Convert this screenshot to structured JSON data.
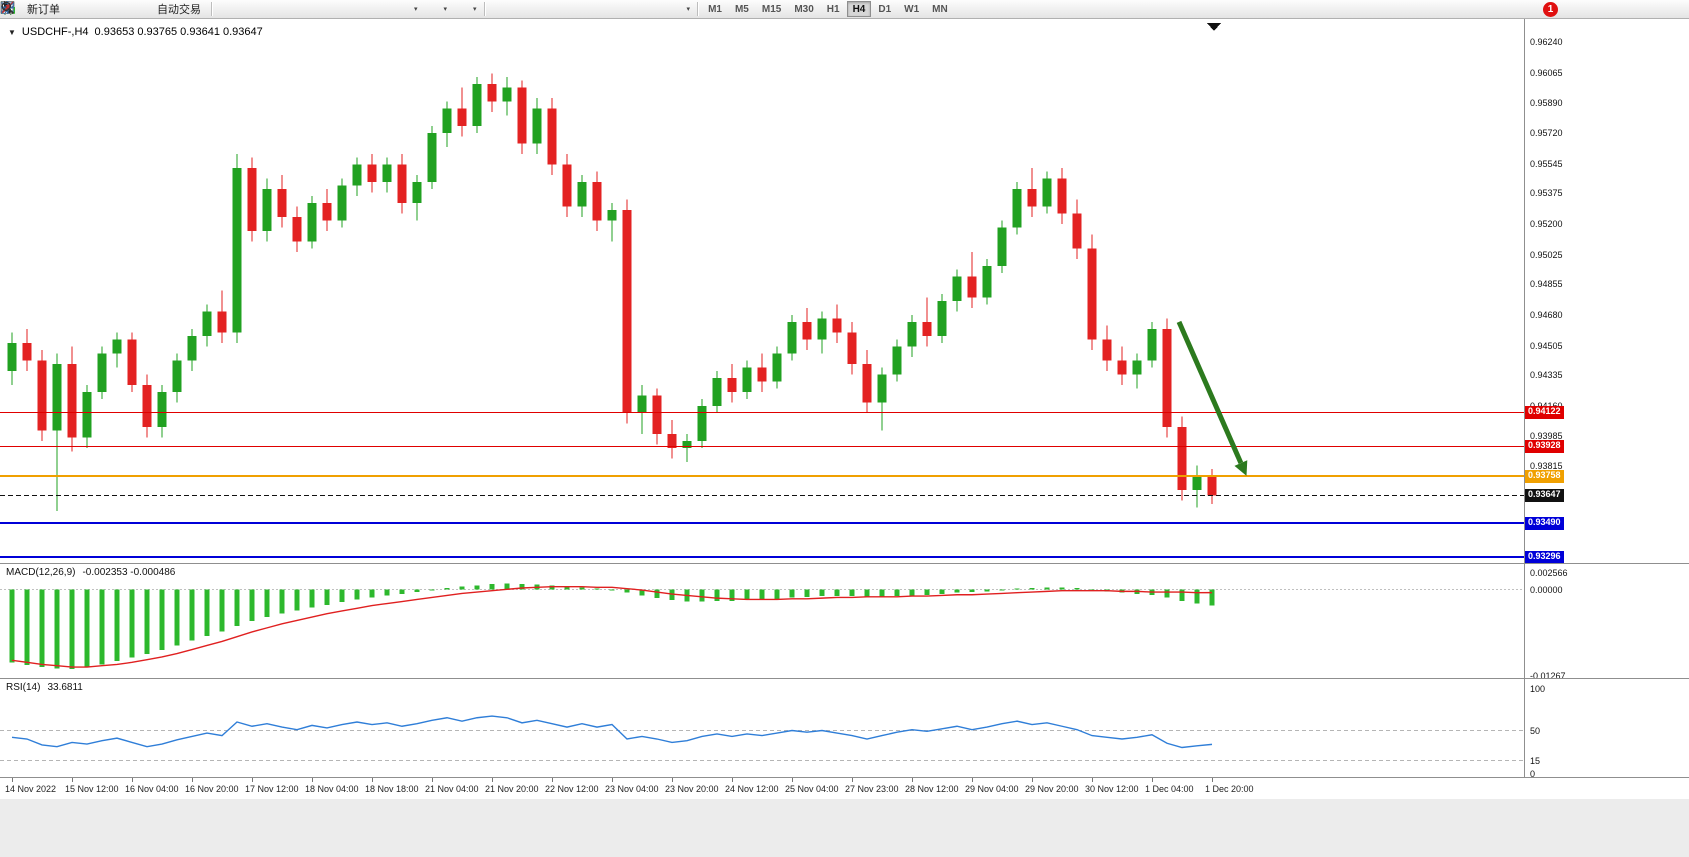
{
  "window": {
    "symbol_period": "USDCHF-,H4",
    "ohlc": "0.93653 0.93765 0.93641 0.93647"
  },
  "toolbar": {
    "left_buttons": [
      {
        "name": "new-order",
        "label": "新订单",
        "icon": "new-order-icon"
      },
      {
        "name": "alerts",
        "icon": "bell-icon"
      },
      {
        "name": "data-window",
        "icon": "window-icon"
      },
      {
        "name": "refresh",
        "icon": "refresh-icon"
      },
      {
        "name": "auto-trading",
        "label": "自动交易",
        "icon": "auto-trading-icon"
      }
    ],
    "chart_buttons": [
      {
        "name": "bar-chart",
        "icon": "bar-chart-icon"
      },
      {
        "name": "candlestick-chart",
        "icon": "candle-chart-icon"
      },
      {
        "name": "line-chart",
        "icon": "line-chart-icon"
      },
      {
        "name": "zoom-in",
        "icon": "zoom-in-icon"
      },
      {
        "name": "zoom-out",
        "icon": "zoom-out-icon"
      },
      {
        "name": "tile-windows",
        "icon": "tile-windows-icon"
      },
      {
        "name": "auto-scroll",
        "icon": "auto-scroll-icon"
      },
      {
        "name": "chart-shift",
        "icon": "chart-shift-icon"
      },
      {
        "name": "indicators",
        "icon": "indicators-icon",
        "caret": true
      },
      {
        "name": "periods",
        "icon": "clock-icon",
        "caret": true
      },
      {
        "name": "templates",
        "icon": "template-icon",
        "caret": true
      }
    ],
    "draw_buttons": [
      {
        "name": "cursor",
        "icon": "cursor-icon"
      },
      {
        "name": "crosshair",
        "icon": "crosshair-icon"
      },
      {
        "name": "vertical-line",
        "icon": "vertical-line-icon"
      },
      {
        "name": "horizontal-line",
        "icon": "horizontal-line-icon"
      },
      {
        "name": "trendline",
        "icon": "trendline-icon"
      },
      {
        "name": "channel",
        "icon": "channel-icon"
      },
      {
        "name": "fibonacci",
        "icon": "fibonacci-icon"
      },
      {
        "name": "text",
        "icon": "text-icon"
      },
      {
        "name": "arrows",
        "icon": "arrow-icon",
        "caret": true
      }
    ],
    "timeframes": [
      "M1",
      "M5",
      "M15",
      "M30",
      "H1",
      "H4",
      "D1",
      "W1",
      "MN"
    ],
    "active_timeframe": "H4",
    "notification_badge": "1"
  },
  "colors": {
    "bull": "#21a121",
    "bear": "#e32222",
    "macd_histogram": "#2db82d",
    "macd_signal": "#e02020",
    "rsi_line": "#2f7ed8",
    "arrow": "#2c7a1e",
    "level_red": "#e00000",
    "level_orange": "#f0a000",
    "level_blue": "#0000d8",
    "current_price_black": "#111111"
  },
  "chart_data": {
    "type": "candlestick",
    "symbol": "USDCHF",
    "timeframe": "H4",
    "current_price": "0.93647",
    "price_axis_labels": [
      "0.96240",
      "0.96065",
      "0.95890",
      "0.95720",
      "0.95545",
      "0.95375",
      "0.95200",
      "0.95025",
      "0.94855",
      "0.94680",
      "0.94505",
      "0.94335",
      "0.94160",
      "0.93985",
      "0.93815"
    ],
    "time_axis_labels": [
      "14 Nov 2022",
      "15 Nov 12:00",
      "16 Nov 04:00",
      "16 Nov 20:00",
      "17 Nov 12:00",
      "18 Nov 04:00",
      "18 Nov 18:00",
      "21 Nov 04:00",
      "21 Nov 20:00",
      "22 Nov 12:00",
      "23 Nov 04:00",
      "23 Nov 20:00",
      "24 Nov 12:00",
      "25 Nov 04:00",
      "27 Nov 23:00",
      "28 Nov 12:00",
      "29 Nov 04:00",
      "29 Nov 20:00",
      "30 Nov 12:00",
      "1 Dec 04:00",
      "1 Dec 20:00"
    ],
    "levels": [
      {
        "label": "0.94122",
        "price": 0.94122,
        "color": "#e00000",
        "width": 1,
        "dashed": false
      },
      {
        "label": "0.93928",
        "price": 0.93928,
        "color": "#e00000",
        "width": 1,
        "dashed": false
      },
      {
        "label": "0.93758",
        "price": 0.93758,
        "color": "#f0a000",
        "width": 2,
        "dashed": false
      },
      {
        "label": "0.93647",
        "price": 0.93647,
        "color": "#111111",
        "width": 1,
        "dashed": true
      },
      {
        "label": "0.93490",
        "price": 0.9349,
        "color": "#0000d8",
        "width": 2,
        "dashed": false
      },
      {
        "label": "0.93296",
        "price": 0.93296,
        "color": "#0000d8",
        "width": 2,
        "dashed": false
      }
    ],
    "annotations": [
      {
        "type": "arrow",
        "from": {
          "index": 77.8,
          "price": 0.9464
        },
        "to": {
          "index": 82.3,
          "price": 0.9376
        },
        "color": "#2c7a1e"
      }
    ],
    "candles": [
      [
        0.9436,
        0.9458,
        0.9428,
        0.9452
      ],
      [
        0.9452,
        0.946,
        0.9436,
        0.9442
      ],
      [
        0.9442,
        0.9448,
        0.9396,
        0.9402
      ],
      [
        0.9402,
        0.9446,
        0.9356,
        0.944
      ],
      [
        0.944,
        0.945,
        0.939,
        0.9398
      ],
      [
        0.9398,
        0.9428,
        0.9392,
        0.9424
      ],
      [
        0.9424,
        0.945,
        0.942,
        0.9446
      ],
      [
        0.9446,
        0.9458,
        0.9438,
        0.9454
      ],
      [
        0.9454,
        0.9458,
        0.9424,
        0.9428
      ],
      [
        0.9428,
        0.9434,
        0.9398,
        0.9404
      ],
      [
        0.9404,
        0.9428,
        0.9398,
        0.9424
      ],
      [
        0.9424,
        0.9446,
        0.9418,
        0.9442
      ],
      [
        0.9442,
        0.946,
        0.9436,
        0.9456
      ],
      [
        0.9456,
        0.9474,
        0.945,
        0.947
      ],
      [
        0.947,
        0.9482,
        0.9452,
        0.9458
      ],
      [
        0.9458,
        0.956,
        0.9452,
        0.9552
      ],
      [
        0.9552,
        0.9558,
        0.951,
        0.9516
      ],
      [
        0.9516,
        0.9546,
        0.951,
        0.954
      ],
      [
        0.954,
        0.9548,
        0.9518,
        0.9524
      ],
      [
        0.9524,
        0.953,
        0.9504,
        0.951
      ],
      [
        0.951,
        0.9536,
        0.9506,
        0.9532
      ],
      [
        0.9532,
        0.954,
        0.9516,
        0.9522
      ],
      [
        0.9522,
        0.9546,
        0.9518,
        0.9542
      ],
      [
        0.9542,
        0.9558,
        0.9536,
        0.9554
      ],
      [
        0.9554,
        0.956,
        0.9538,
        0.9544
      ],
      [
        0.9544,
        0.9558,
        0.9538,
        0.9554
      ],
      [
        0.9554,
        0.956,
        0.9526,
        0.9532
      ],
      [
        0.9532,
        0.9548,
        0.9522,
        0.9544
      ],
      [
        0.9544,
        0.9576,
        0.954,
        0.9572
      ],
      [
        0.9572,
        0.959,
        0.9564,
        0.9586
      ],
      [
        0.9586,
        0.9598,
        0.957,
        0.9576
      ],
      [
        0.9576,
        0.9604,
        0.9572,
        0.96
      ],
      [
        0.96,
        0.9606,
        0.9584,
        0.959
      ],
      [
        0.959,
        0.9604,
        0.9582,
        0.9598
      ],
      [
        0.9598,
        0.9602,
        0.956,
        0.9566
      ],
      [
        0.9566,
        0.9592,
        0.956,
        0.9586
      ],
      [
        0.9586,
        0.9592,
        0.9548,
        0.9554
      ],
      [
        0.9554,
        0.956,
        0.9524,
        0.953
      ],
      [
        0.953,
        0.9548,
        0.9524,
        0.9544
      ],
      [
        0.9544,
        0.955,
        0.9516,
        0.9522
      ],
      [
        0.9522,
        0.9532,
        0.951,
        0.9528
      ],
      [
        0.9528,
        0.9534,
        0.9406,
        0.9412
      ],
      [
        0.9412,
        0.9428,
        0.94,
        0.9422
      ],
      [
        0.9422,
        0.9426,
        0.9394,
        0.94
      ],
      [
        0.94,
        0.9408,
        0.9386,
        0.9392
      ],
      [
        0.9392,
        0.94,
        0.9384,
        0.9396
      ],
      [
        0.9396,
        0.942,
        0.9392,
        0.9416
      ],
      [
        0.9416,
        0.9436,
        0.9412,
        0.9432
      ],
      [
        0.9432,
        0.944,
        0.9418,
        0.9424
      ],
      [
        0.9424,
        0.9442,
        0.942,
        0.9438
      ],
      [
        0.9438,
        0.9446,
        0.9424,
        0.943
      ],
      [
        0.943,
        0.945,
        0.9426,
        0.9446
      ],
      [
        0.9446,
        0.9468,
        0.9442,
        0.9464
      ],
      [
        0.9464,
        0.9472,
        0.9448,
        0.9454
      ],
      [
        0.9454,
        0.947,
        0.9446,
        0.9466
      ],
      [
        0.9466,
        0.9474,
        0.9452,
        0.9458
      ],
      [
        0.9458,
        0.9464,
        0.9434,
        0.944
      ],
      [
        0.944,
        0.9448,
        0.9412,
        0.9418
      ],
      [
        0.9418,
        0.9438,
        0.9402,
        0.9434
      ],
      [
        0.9434,
        0.9454,
        0.943,
        0.945
      ],
      [
        0.945,
        0.9468,
        0.9444,
        0.9464
      ],
      [
        0.9464,
        0.9478,
        0.945,
        0.9456
      ],
      [
        0.9456,
        0.948,
        0.9452,
        0.9476
      ],
      [
        0.9476,
        0.9494,
        0.947,
        0.949
      ],
      [
        0.949,
        0.9504,
        0.9472,
        0.9478
      ],
      [
        0.9478,
        0.95,
        0.9474,
        0.9496
      ],
      [
        0.9496,
        0.9522,
        0.9492,
        0.9518
      ],
      [
        0.9518,
        0.9544,
        0.9514,
        0.954
      ],
      [
        0.954,
        0.9552,
        0.9524,
        0.953
      ],
      [
        0.953,
        0.955,
        0.9526,
        0.9546
      ],
      [
        0.9546,
        0.9552,
        0.952,
        0.9526
      ],
      [
        0.9526,
        0.9534,
        0.95,
        0.9506
      ],
      [
        0.9506,
        0.9514,
        0.9448,
        0.9454
      ],
      [
        0.9454,
        0.9462,
        0.9436,
        0.9442
      ],
      [
        0.9442,
        0.945,
        0.9428,
        0.9434
      ],
      [
        0.9434,
        0.9446,
        0.9426,
        0.9442
      ],
      [
        0.9442,
        0.9464,
        0.9438,
        0.946
      ],
      [
        0.946,
        0.9466,
        0.9398,
        0.9404
      ],
      [
        0.9404,
        0.941,
        0.9362,
        0.9368
      ],
      [
        0.9368,
        0.9382,
        0.9358,
        0.9376
      ],
      [
        0.9376,
        0.938,
        0.936,
        0.93647
      ]
    ],
    "indicators": {
      "macd": {
        "label": "MACD(12,26,9)",
        "values": "-0.002353 -0.000486",
        "axis_labels": [
          "0.002566",
          "0.00000",
          "-0.01267"
        ],
        "range": [
          -0.01267,
          0.002566
        ],
        "histogram": [
          -0.0108,
          -0.0112,
          -0.0115,
          -0.0117,
          -0.0118,
          -0.0115,
          -0.0111,
          -0.0106,
          -0.0101,
          -0.0096,
          -0.009,
          -0.0083,
          -0.0076,
          -0.0069,
          -0.0062,
          -0.0054,
          -0.0047,
          -0.0041,
          -0.0036,
          -0.0031,
          -0.0027,
          -0.0023,
          -0.0019,
          -0.0015,
          -0.0012,
          -0.0009,
          -0.0007,
          -0.0004,
          -0.0001,
          0.0002,
          0.0004,
          0.0006,
          0.0008,
          0.0009,
          0.0008,
          0.0007,
          0.0006,
          0.0004,
          0.0003,
          0.0001,
          0.0,
          -0.0005,
          -0.0009,
          -0.0013,
          -0.0016,
          -0.0018,
          -0.0018,
          -0.0017,
          -0.0017,
          -0.0016,
          -0.0015,
          -0.0014,
          -0.0012,
          -0.0011,
          -0.001,
          -0.001,
          -0.001,
          -0.0011,
          -0.0011,
          -0.001,
          -0.0009,
          -0.0008,
          -0.0007,
          -0.0005,
          -0.0004,
          -0.0003,
          -0.0001,
          0.0001,
          0.0002,
          0.0003,
          0.0003,
          0.0002,
          0.0,
          -0.0003,
          -0.0005,
          -0.0007,
          -0.0008,
          -0.0012,
          -0.0017,
          -0.0021,
          -0.002353
        ],
        "signal": [
          -0.0105,
          -0.0108,
          -0.0111,
          -0.0113,
          -0.0115,
          -0.0115,
          -0.0113,
          -0.0111,
          -0.0108,
          -0.0104,
          -0.01,
          -0.0095,
          -0.0089,
          -0.0083,
          -0.0077,
          -0.007,
          -0.0063,
          -0.0057,
          -0.0051,
          -0.0046,
          -0.0041,
          -0.0036,
          -0.0032,
          -0.0028,
          -0.0024,
          -0.0021,
          -0.0018,
          -0.0015,
          -0.0012,
          -0.0009,
          -0.0006,
          -0.0004,
          -0.0002,
          0.0,
          0.0002,
          0.0003,
          0.0004,
          0.0004,
          0.0004,
          0.0003,
          0.0003,
          0.0001,
          -0.0001,
          -0.0004,
          -0.0007,
          -0.0009,
          -0.0011,
          -0.0013,
          -0.0014,
          -0.0015,
          -0.0015,
          -0.0015,
          -0.0014,
          -0.0014,
          -0.0013,
          -0.0012,
          -0.0012,
          -0.0011,
          -0.0011,
          -0.0011,
          -0.001,
          -0.001,
          -0.0009,
          -0.0008,
          -0.0008,
          -0.0007,
          -0.0006,
          -0.0005,
          -0.0004,
          -0.0003,
          -0.0002,
          -0.0002,
          -0.0002,
          -0.0002,
          -0.0003,
          -0.0003,
          -0.0004,
          -0.0004,
          -0.0004,
          -0.0005,
          -0.000486
        ]
      },
      "rsi": {
        "label": "RSI(14)",
        "value": "33.6811",
        "axis_labels": [
          "100",
          "50",
          "15",
          "0"
        ],
        "range": [
          0,
          100
        ],
        "levels": [
          50,
          15
        ],
        "values": [
          42,
          40,
          33,
          31,
          36,
          34,
          38,
          41,
          36,
          31,
          34,
          39,
          43,
          47,
          44,
          60,
          55,
          58,
          54,
          51,
          56,
          53,
          57,
          60,
          57,
          59,
          55,
          58,
          62,
          65,
          61,
          65,
          67,
          65,
          59,
          62,
          58,
          54,
          58,
          54,
          57,
          40,
          43,
          40,
          36,
          38,
          43,
          46,
          43,
          46,
          44,
          47,
          50,
          48,
          50,
          47,
          44,
          40,
          44,
          48,
          51,
          49,
          52,
          55,
          51,
          54,
          58,
          61,
          57,
          59,
          55,
          51,
          44,
          42,
          40,
          42,
          45,
          35,
          30,
          32,
          33.68
        ]
      }
    }
  }
}
